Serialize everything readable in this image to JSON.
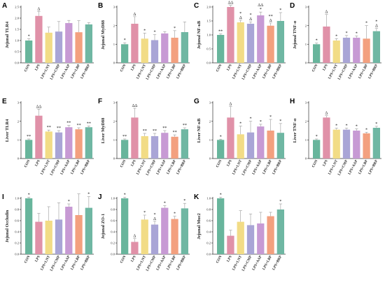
{
  "categories": [
    "CON",
    "LPS",
    "LPS+LNT",
    "LPS+CMP",
    "LPS+AAP",
    "LPS+LBP",
    "LPS+BRP"
  ],
  "colors": [
    "#68b59c",
    "#e091a8",
    "#f2dc86",
    "#a9a5d6",
    "#c79ad4",
    "#f3a07f",
    "#6fb7a3"
  ],
  "chart_data": [
    {
      "type": "bar",
      "letter": "A",
      "ylabel": "Jejunal TLR4",
      "ylim": [
        0,
        2.5
      ],
      "ticks": [
        "0.0",
        "0.5",
        "1.0",
        "1.5",
        "2.0",
        "2.5"
      ],
      "values": [
        1.0,
        2.1,
        1.35,
        1.4,
        1.78,
        1.37,
        1.72
      ],
      "errors": [
        0.08,
        0.2,
        0.25,
        0.45,
        0.12,
        0.52,
        0.08
      ],
      "annotations": [
        "*",
        "Δ",
        "",
        "",
        "",
        "",
        ""
      ]
    },
    {
      "type": "bar",
      "letter": "B",
      "ylabel": "Jejunal MyD88",
      "ylim": [
        0,
        3
      ],
      "ticks": [
        "0",
        "1",
        "2",
        "3"
      ],
      "values": [
        1.0,
        2.1,
        1.3,
        1.22,
        1.58,
        1.35,
        1.65
      ],
      "errors": [
        0.08,
        0.38,
        0.3,
        0.3,
        0.1,
        0.38,
        0.55
      ],
      "annotations": [
        "*",
        "Δ",
        "*",
        "*",
        "",
        "*",
        ""
      ]
    },
    {
      "type": "bar",
      "letter": "C",
      "ylabel": "Jejunal NF-κB",
      "ylim": [
        0,
        2.0
      ],
      "ticks": [
        "0.0",
        "0.5",
        "1.0",
        "1.5",
        "2.0"
      ],
      "values": [
        1.0,
        2.0,
        1.45,
        1.4,
        1.7,
        1.33,
        1.5
      ],
      "errors": [
        0.04,
        0.06,
        0.08,
        0.07,
        0.12,
        0.1,
        0.3
      ],
      "annotations": [
        "**",
        "ΔΔ",
        "*\nΔ",
        "*\nΔ",
        "ΔΔ\n*",
        "**\nΔ",
        "*"
      ]
    },
    {
      "type": "bar",
      "letter": "D",
      "ylabel": "Jejunal TNF-α",
      "ylim": [
        0,
        3
      ],
      "ticks": [
        "0",
        "1",
        "2",
        "3"
      ],
      "values": [
        1.0,
        1.95,
        1.2,
        1.35,
        1.35,
        1.3,
        1.7
      ],
      "errors": [
        0.06,
        0.65,
        0.1,
        0.12,
        0.1,
        0.7,
        0.15
      ],
      "annotations": [
        "*",
        "Δ",
        "*",
        "*",
        "*",
        "*",
        "*\nΔ"
      ]
    },
    {
      "type": "bar",
      "letter": "E",
      "ylabel": "Liver TLR4",
      "ylim": [
        0,
        3
      ],
      "ticks": [
        "0",
        "1",
        "2",
        "3"
      ],
      "values": [
        1.0,
        2.3,
        1.45,
        1.4,
        1.68,
        1.57,
        1.68
      ],
      "errors": [
        0.05,
        0.35,
        0.08,
        0.1,
        0.1,
        0.08,
        0.07
      ],
      "annotations": [
        "**",
        "ΔΔ",
        "**",
        "**",
        "**",
        "**",
        "**"
      ]
    },
    {
      "type": "bar",
      "letter": "F",
      "ylabel": "Liver MyD88",
      "ylim": [
        0,
        3
      ],
      "ticks": [
        "0",
        "1",
        "2",
        "3"
      ],
      "values": [
        1.0,
        2.2,
        1.2,
        1.2,
        1.38,
        1.17,
        1.57
      ],
      "errors": [
        0.05,
        0.5,
        0.15,
        0.15,
        0.12,
        0.1,
        0.08
      ],
      "annotations": [
        "**",
        "ΔΔ",
        "**",
        "**",
        "**",
        "**",
        "**"
      ]
    },
    {
      "type": "bar",
      "letter": "G",
      "ylabel": "Liver NF-κB",
      "ylim": [
        0,
        3
      ],
      "ticks": [
        "0",
        "1",
        "2",
        "3"
      ],
      "values": [
        1.0,
        2.2,
        1.3,
        1.4,
        1.72,
        1.5,
        1.38
      ],
      "errors": [
        0.04,
        0.6,
        0.45,
        0.6,
        0.12,
        0.6,
        0.5
      ],
      "annotations": [
        "*",
        "Δ",
        "*",
        "*",
        "*",
        "*",
        "*"
      ]
    },
    {
      "type": "bar",
      "letter": "H",
      "ylabel": "Liver TNF-α",
      "ylim": [
        0,
        3
      ],
      "ticks": [
        "0",
        "1",
        "2",
        "3"
      ],
      "values": [
        1.0,
        2.2,
        1.55,
        1.55,
        1.5,
        1.35,
        1.65
      ],
      "errors": [
        0.05,
        0.1,
        0.08,
        0.08,
        0.1,
        0.06,
        0.08
      ],
      "annotations": [
        "*",
        "Δ",
        "*",
        "*",
        "*",
        "*",
        "*"
      ]
    },
    {
      "type": "bar",
      "letter": "I",
      "ylabel": "Jejunal Occludin",
      "ylim": [
        0,
        1.0
      ],
      "ticks": [
        "0.0",
        "0.2",
        "0.4",
        "0.6",
        "0.8",
        "1.0"
      ],
      "values": [
        1.0,
        0.58,
        0.6,
        0.62,
        0.85,
        0.7,
        0.83
      ],
      "errors": [
        0.02,
        0.15,
        0.25,
        0.3,
        0.05,
        0.38,
        0.2
      ],
      "annotations": [
        "*",
        "",
        "",
        "",
        "*",
        "",
        "*"
      ]
    },
    {
      "type": "bar",
      "letter": "J",
      "ylabel": "Jejunal ZO-1",
      "ylim": [
        0,
        1.0
      ],
      "ticks": [
        "0.0",
        "0.2",
        "0.4",
        "0.6",
        "0.8",
        "1.0"
      ],
      "values": [
        1.0,
        0.22,
        0.62,
        0.53,
        0.83,
        0.63,
        0.82
      ],
      "errors": [
        0.02,
        0.06,
        0.08,
        0.06,
        0.04,
        0.05,
        0.09
      ],
      "annotations": [
        "*",
        "Δ",
        "*",
        "*\nΔ",
        "*",
        "*",
        "*"
      ]
    },
    {
      "type": "bar",
      "letter": "K",
      "ylabel": "Jejunal Muc2",
      "ylim": [
        0,
        1.0
      ],
      "ticks": [
        "0.0",
        "0.2",
        "0.4",
        "0.6",
        "0.8",
        "1.0"
      ],
      "values": [
        1.0,
        0.33,
        0.58,
        0.52,
        0.55,
        0.68,
        0.8
      ],
      "errors": [
        0.02,
        0.1,
        0.2,
        0.2,
        0.2,
        0.07,
        0.1
      ],
      "annotations": [
        "*",
        "",
        "",
        "",
        "",
        "",
        "*"
      ]
    }
  ]
}
